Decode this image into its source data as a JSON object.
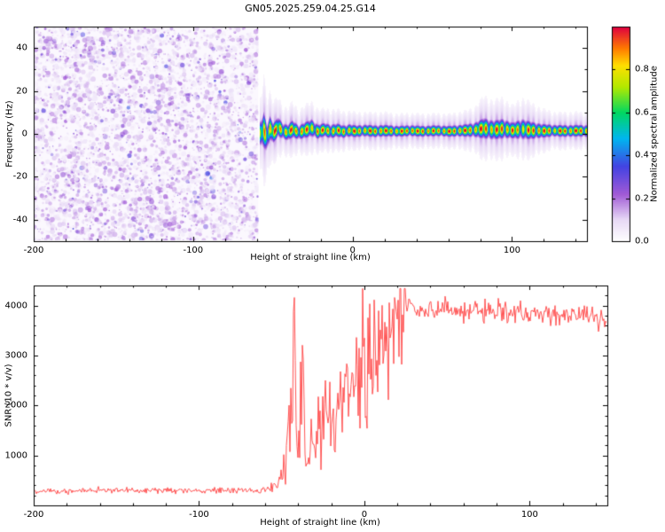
{
  "title": "GN05.2025.259.04.25.G14",
  "colors": {
    "background": "#ffffff",
    "frame": "#000000",
    "text": "#000000",
    "snr_line": "#ff4242",
    "noise_bg": "#fbf8fe"
  },
  "chart_data": [
    {
      "type": "heatmap",
      "panel": "spectrogram",
      "xlabel": "Height of straight line (km)",
      "ylabel": "Frequency (Hz)",
      "xlim": [
        -200,
        147
      ],
      "ylim": [
        -50,
        50
      ],
      "xticks": [
        -200,
        -100,
        0,
        100
      ],
      "xtick_labels": [
        "-200",
        "-100",
        "0",
        "100"
      ],
      "yticks": [
        -40,
        -20,
        0,
        20,
        40
      ],
      "ytick_labels": [
        "-40",
        "-20",
        "0",
        "20",
        "40"
      ],
      "grid": false,
      "colorbar": {
        "label": "Normalized spectral amplitude",
        "range": [
          0,
          1
        ],
        "tick_values": [
          0,
          0.2,
          0.4,
          0.6,
          0.8
        ],
        "tick_labels": [
          "0.0",
          "0.2",
          "0.4",
          "0.6",
          "0.8"
        ]
      },
      "colormap_stops": [
        [
          0.0,
          "#ffffff"
        ],
        [
          0.1,
          "#e8daf6"
        ],
        [
          0.22,
          "#a15ad6"
        ],
        [
          0.35,
          "#4343e2"
        ],
        [
          0.48,
          "#00b6f0"
        ],
        [
          0.6,
          "#00d862"
        ],
        [
          0.72,
          "#b2e900"
        ],
        [
          0.82,
          "#ffdf00"
        ],
        [
          0.9,
          "#ff7a00"
        ],
        [
          1.0,
          "#df0040"
        ]
      ],
      "noise_region": {
        "x_start_km": -200,
        "x_end_km": -59,
        "value_range": [
          0,
          0.35
        ]
      },
      "signal_band_points": [
        [
          -58,
          0.5,
          3.0,
          0.75
        ],
        [
          -56,
          2.0,
          4.5,
          1.0
        ],
        [
          -54,
          -1.5,
          3.5,
          1.0
        ],
        [
          -52,
          3.0,
          3.0,
          0.9
        ],
        [
          -50,
          0.5,
          2.5,
          1.0
        ],
        [
          -47,
          3.5,
          2.5,
          0.95
        ],
        [
          -44,
          1.5,
          2.0,
          1.0
        ],
        [
          -41,
          0.8,
          2.0,
          0.9
        ],
        [
          -38,
          2.5,
          2.2,
          1.0
        ],
        [
          -34,
          0.8,
          1.8,
          0.95
        ],
        [
          -30,
          2.0,
          2.0,
          1.0
        ],
        [
          -26,
          3.0,
          2.2,
          0.9
        ],
        [
          -22,
          1.2,
          1.8,
          1.0
        ],
        [
          -18,
          2.2,
          1.7,
          0.95
        ],
        [
          -14,
          1.2,
          1.8,
          1.0
        ],
        [
          -10,
          2.0,
          1.7,
          0.9
        ],
        [
          -6,
          1.2,
          1.6,
          1.0
        ],
        [
          -2,
          1.8,
          1.6,
          0.95
        ],
        [
          2,
          1.4,
          1.5,
          1.0
        ],
        [
          8,
          1.8,
          1.5,
          0.95
        ],
        [
          14,
          1.4,
          1.5,
          1.0
        ],
        [
          20,
          1.7,
          1.5,
          1.0
        ],
        [
          28,
          1.4,
          1.4,
          0.95
        ],
        [
          36,
          1.7,
          1.4,
          1.0
        ],
        [
          44,
          1.4,
          1.4,
          1.0
        ],
        [
          52,
          1.7,
          1.4,
          0.95
        ],
        [
          60,
          1.4,
          1.4,
          1.0
        ],
        [
          68,
          1.7,
          1.5,
          1.0
        ],
        [
          76,
          2.0,
          1.8,
          0.95
        ],
        [
          82,
          2.8,
          2.6,
          1.0
        ],
        [
          88,
          2.0,
          2.4,
          0.95
        ],
        [
          94,
          2.6,
          2.5,
          1.0
        ],
        [
          100,
          1.8,
          2.0,
          0.95
        ],
        [
          106,
          2.4,
          2.6,
          0.9
        ],
        [
          112,
          1.8,
          2.2,
          1.0
        ],
        [
          118,
          1.6,
          1.8,
          1.0
        ],
        [
          126,
          1.7,
          1.5,
          0.95
        ],
        [
          134,
          1.5,
          1.5,
          1.0
        ],
        [
          141,
          1.7,
          1.5,
          1.0
        ],
        [
          147,
          1.5,
          1.5,
          0.95
        ]
      ]
    },
    {
      "type": "line",
      "panel": "snr",
      "xlabel": "Height of straight line (km)",
      "ylabel": "SNR (10 * v/v)",
      "xlim": [
        -200,
        147
      ],
      "ylim": [
        0,
        4400
      ],
      "xticks": [
        -200,
        -100,
        0,
        100
      ],
      "xtick_labels": [
        "-200",
        "-100",
        "0",
        "100"
      ],
      "yticks": [
        1000,
        2000,
        3000,
        4000
      ],
      "ytick_labels": [
        "1000",
        "2000",
        "3000",
        "4000"
      ],
      "grid": false,
      "line_color": "#ff4242",
      "envelope_points": [
        [
          -200,
          290
        ],
        [
          -170,
          295
        ],
        [
          -140,
          300
        ],
        [
          -110,
          295
        ],
        [
          -80,
          300
        ],
        [
          -62,
          300
        ],
        [
          -57,
          320
        ],
        [
          -53,
          420
        ],
        [
          -50,
          650
        ],
        [
          -47,
          1050
        ],
        [
          -45,
          1500
        ],
        [
          -43,
          2600
        ],
        [
          -42,
          3300
        ],
        [
          -41,
          1100
        ],
        [
          -39,
          850
        ],
        [
          -38,
          2200
        ],
        [
          -37,
          3450
        ],
        [
          -36,
          1300
        ],
        [
          -34,
          950
        ],
        [
          -32,
          1350
        ],
        [
          -30,
          1150
        ],
        [
          -28,
          1600
        ],
        [
          -26,
          1300
        ],
        [
          -24,
          1750
        ],
        [
          -22,
          1500
        ],
        [
          -20,
          1850
        ],
        [
          -18,
          1600
        ],
        [
          -16,
          2050
        ],
        [
          -14,
          1800
        ],
        [
          -12,
          2250
        ],
        [
          -10,
          2550
        ],
        [
          -8,
          2250
        ],
        [
          -6,
          2650
        ],
        [
          -4,
          2500
        ],
        [
          -2,
          2850
        ],
        [
          0,
          3000
        ],
        [
          3,
          3150
        ],
        [
          6,
          3000
        ],
        [
          9,
          3350
        ],
        [
          12,
          3550
        ],
        [
          15,
          3450
        ],
        [
          18,
          3750
        ],
        [
          22,
          3900
        ],
        [
          26,
          3950
        ],
        [
          30,
          3900
        ],
        [
          40,
          3850
        ],
        [
          50,
          3950
        ],
        [
          60,
          3900
        ],
        [
          70,
          3950
        ],
        [
          80,
          3850
        ],
        [
          90,
          3900
        ],
        [
          100,
          3800
        ],
        [
          110,
          3850
        ],
        [
          120,
          3800
        ],
        [
          130,
          3850
        ],
        [
          140,
          3750
        ],
        [
          147,
          3700
        ]
      ],
      "noise_segments": [
        {
          "from": -200,
          "to": -57,
          "amp": 0.18
        },
        {
          "from": -57,
          "to": -50,
          "amp": 0.28
        },
        {
          "from": -50,
          "to": 25,
          "amp": 0.4
        },
        {
          "from": 25,
          "to": 147,
          "amp": 0.05
        }
      ]
    }
  ]
}
